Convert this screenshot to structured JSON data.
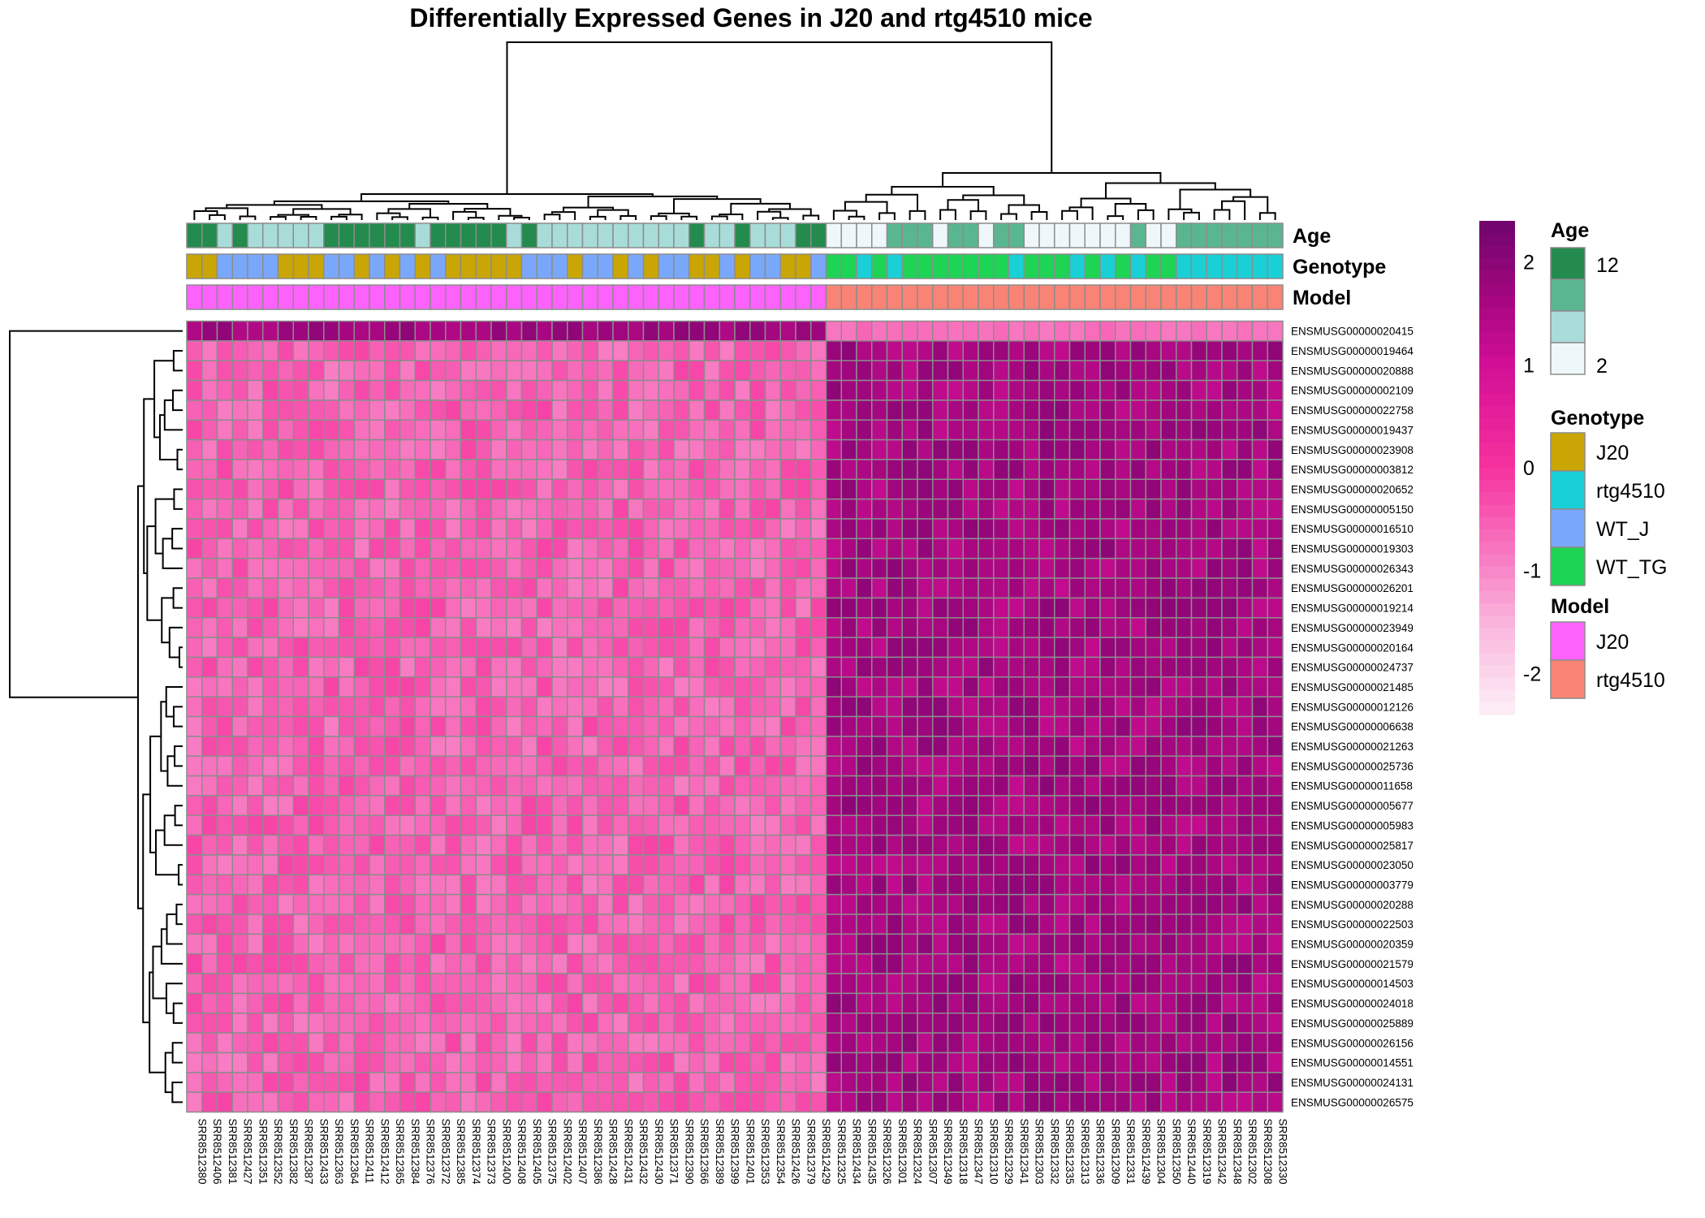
{
  "chart_data": {
    "type": "heatmap",
    "title": "Differentially Expressed Genes in J20 and rtg4510 mice",
    "samples": [
      "SRR8512380",
      "SRR8512406",
      "SRR8512381",
      "SRR8512427",
      "SRR8512351",
      "SRR8512352",
      "SRR8512382",
      "SRR8512387",
      "SRR8512433",
      "SRR8512363",
      "SRR8512364",
      "SRR8512411",
      "SRR8512412",
      "SRR8512365",
      "SRR8512384",
      "SRR8512376",
      "SRR8512372",
      "SRR8512385",
      "SRR8512374",
      "SRR8512373",
      "SRR8512400",
      "SRR8512408",
      "SRR8512405",
      "SRR8512375",
      "SRR8512402",
      "SRR8512407",
      "SRR8512386",
      "SRR8512428",
      "SRR8512431",
      "SRR8512432",
      "SRR8512430",
      "SRR8512371",
      "SRR8512390",
      "SRR8512366",
      "SRR8512389",
      "SRR8512399",
      "SRR8512401",
      "SRR8512353",
      "SRR8512354",
      "SRR8512426",
      "SRR8512379",
      "SRR8512429",
      "SRR8512325",
      "SRR8512434",
      "SRR8512435",
      "SRR8512326",
      "SRR8512301",
      "SRR8512324",
      "SRR8512307",
      "SRR8512349",
      "SRR8512318",
      "SRR8512347",
      "SRR8512310",
      "SRR8512329",
      "SRR8512341",
      "SRR8512303",
      "SRR8512332",
      "SRR8512335",
      "SRR8512313",
      "SRR8512336",
      "SRR8512309",
      "SRR8512331",
      "SRR8512439",
      "SRR8512304",
      "SRR8512350",
      "SRR8512440",
      "SRR8512319",
      "SRR8512342",
      "SRR8512348",
      "SRR8512302",
      "SRR8512308",
      "SRR8512330"
    ],
    "genes": [
      "ENSMUSG00000020415",
      "ENSMUSG00000019464",
      "ENSMUSG00000020888",
      "ENSMUSG00000002109",
      "ENSMUSG00000022758",
      "ENSMUSG00000019437",
      "ENSMUSG00000023908",
      "ENSMUSG00000003812",
      "ENSMUSG00000020652",
      "ENSMUSG00000005150",
      "ENSMUSG00000016510",
      "ENSMUSG00000019303",
      "ENSMUSG00000026343",
      "ENSMUSG00000026201",
      "ENSMUSG00000019214",
      "ENSMUSG00000023949",
      "ENSMUSG00000020164",
      "ENSMUSG00000024737",
      "ENSMUSG00000021485",
      "ENSMUSG00000012126",
      "ENSMUSG00000006638",
      "ENSMUSG00000021263",
      "ENSMUSG00000025736",
      "ENSMUSG00000011658",
      "ENSMUSG00000005677",
      "ENSMUSG00000005983",
      "ENSMUSG00000025817",
      "ENSMUSG00000023050",
      "ENSMUSG00000003779",
      "ENSMUSG00000020288",
      "ENSMUSG00000022503",
      "ENSMUSG00000020359",
      "ENSMUSG00000021579",
      "ENSMUSG00000014503",
      "ENSMUSG00000024018",
      "ENSMUSG00000025889",
      "ENSMUSG00000026156",
      "ENSMUSG00000014551",
      "ENSMUSG00000024131",
      "ENSMUSG00000026575"
    ],
    "annotations": {
      "labels": [
        "Age",
        "Genotype",
        "Model"
      ],
      "age": [
        "12",
        "12",
        "6",
        "12",
        "4",
        "4",
        "4",
        "4",
        "4",
        "12",
        "12",
        "12",
        "12",
        "12",
        "12",
        "4",
        "12",
        "12",
        "12",
        "12",
        "12",
        "6",
        "12",
        "6",
        "4",
        "4",
        "4",
        "4",
        "6",
        "4",
        "6",
        "4",
        "4",
        "12",
        "4",
        "6",
        "12",
        "4",
        "4",
        "4",
        "12",
        "12",
        "2",
        "2",
        "2",
        "2",
        "8",
        "8",
        "8",
        "2",
        "8",
        "8",
        "2",
        "8",
        "8",
        "2",
        "2",
        "2",
        "2",
        "2",
        "2",
        "2",
        "8",
        "2",
        "2",
        "8",
        "8",
        "8",
        "8",
        "8",
        "8",
        "8"
      ],
      "genotype": [
        "J20",
        "J20",
        "WT_J",
        "WT_J",
        "WT_J",
        "WT_J",
        "J20",
        "J20",
        "J20",
        "WT_J",
        "WT_J",
        "J20",
        "WT_J",
        "J20",
        "WT_J",
        "J20",
        "WT_J",
        "J20",
        "J20",
        "J20",
        "J20",
        "J20",
        "WT_J",
        "WT_J",
        "WT_J",
        "J20",
        "WT_J",
        "WT_J",
        "J20",
        "WT_J",
        "J20",
        "WT_J",
        "WT_J",
        "J20",
        "J20",
        "WT_J",
        "J20",
        "WT_J",
        "WT_J",
        "J20",
        "J20",
        "WT_J",
        "WT_TG",
        "WT_TG",
        "rtg4510",
        "WT_TG",
        "rtg4510",
        "WT_TG",
        "WT_TG",
        "WT_TG",
        "WT_TG",
        "WT_TG",
        "WT_TG",
        "WT_TG",
        "rtg4510",
        "WT_TG",
        "WT_TG",
        "WT_TG",
        "rtg4510",
        "WT_TG",
        "rtg4510",
        "WT_TG",
        "rtg4510",
        "WT_TG",
        "WT_TG",
        "rtg4510",
        "rtg4510",
        "rtg4510",
        "rtg4510",
        "rtg4510",
        "rtg4510",
        "rtg4510"
      ],
      "model_split": 42
    },
    "color_scale": {
      "min": -2.4,
      "max": 2.4,
      "ticks": [
        "2",
        "1",
        "0",
        "-1",
        "-2"
      ],
      "tick_values": [
        2,
        1,
        0,
        -1,
        -2
      ]
    },
    "legend_placement": "right"
  },
  "legends": {
    "age": {
      "title": "Age",
      "labels": [
        "12",
        "2"
      ],
      "colors": [
        "#238b4e",
        "#5ab690",
        "#a8dcd8",
        "#eef7f9"
      ]
    },
    "genotype": {
      "title": "Genotype",
      "labels": [
        "J20",
        "rtg4510",
        "WT_J",
        "WT_TG"
      ],
      "colors": [
        "#c9a605",
        "#19d0d6",
        "#79a8fb",
        "#1dd455"
      ]
    },
    "model": {
      "title": "Model",
      "labels": [
        "J20",
        "rtg4510"
      ],
      "colors": [
        "#fd62fc",
        "#f98375"
      ]
    }
  },
  "colors": {
    "low": "#fde8f4",
    "mid": "#f9359b",
    "high": "#6e066d",
    "grid": "#8c8c8c"
  }
}
